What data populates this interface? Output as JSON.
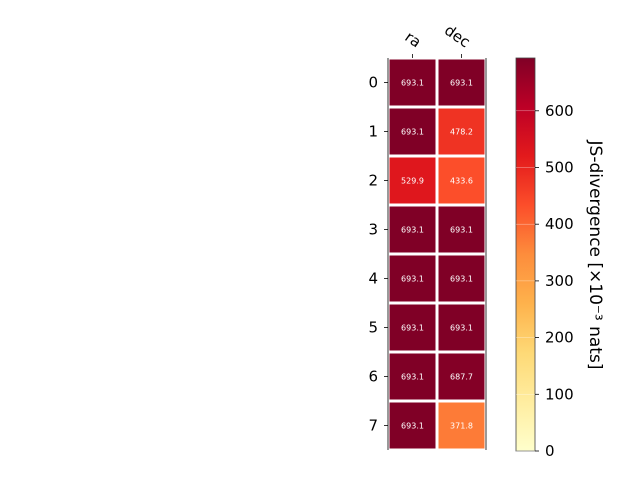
{
  "chart_data": {
    "type": "heatmap",
    "columns": [
      "ra",
      "dec"
    ],
    "rows": [
      "0",
      "1",
      "2",
      "3",
      "4",
      "5",
      "6",
      "7"
    ],
    "values": [
      [
        693.1,
        693.1
      ],
      [
        693.1,
        478.2
      ],
      [
        529.9,
        433.6
      ],
      [
        693.1,
        693.1
      ],
      [
        693.1,
        693.1
      ],
      [
        693.1,
        693.1
      ],
      [
        693.1,
        687.7
      ],
      [
        693.1,
        371.8
      ]
    ],
    "value_labels": [
      [
        "693.1",
        "693.1"
      ],
      [
        "693.1",
        "478.2"
      ],
      [
        "529.9",
        "433.6"
      ],
      [
        "693.1",
        "693.1"
      ],
      [
        "693.1",
        "693.1"
      ],
      [
        "693.1",
        "693.1"
      ],
      [
        "693.1",
        "687.7"
      ],
      [
        "693.1",
        "371.8"
      ]
    ],
    "colorbar": {
      "label": "JS-divergence [×10⁻³ nats]",
      "ticks": [
        "0",
        "100",
        "200",
        "300",
        "400",
        "500",
        "600"
      ],
      "tick_values": [
        0,
        100,
        200,
        300,
        400,
        500,
        600
      ],
      "range": [
        0,
        693.1
      ],
      "colormap": "YlOrRd"
    },
    "grid": false
  }
}
